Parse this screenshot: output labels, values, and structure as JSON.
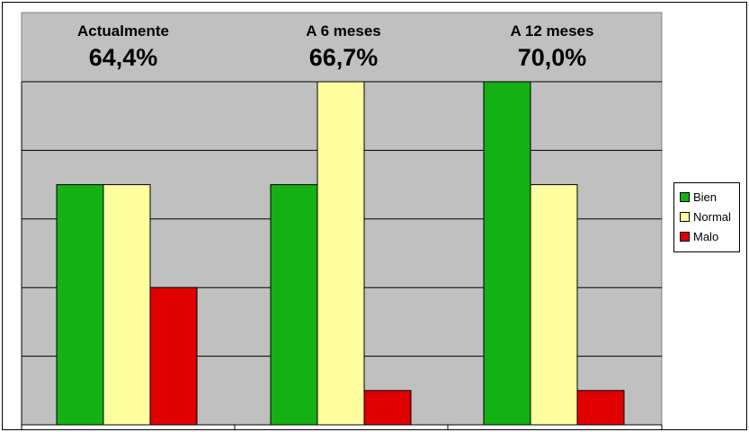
{
  "chart_data": {
    "type": "bar",
    "categories": [
      "Actualmente",
      "A 6 meses",
      "A 12 meses"
    ],
    "category_values": [
      "64,4%",
      "66,7%",
      "70,0%"
    ],
    "series": [
      {
        "name": "Bien",
        "color": "#14b014",
        "values": [
          3.5,
          3.5,
          5.0
        ]
      },
      {
        "name": "Normal",
        "color": "#ffffa0",
        "values": [
          3.5,
          5.0,
          3.5
        ]
      },
      {
        "name": "Malo",
        "color": "#e00000",
        "values": [
          2.0,
          0.5,
          0.5
        ]
      }
    ],
    "ylim": [
      0,
      5
    ],
    "grid": true,
    "legend": "right",
    "plot_background": "#c0c0c0",
    "title": "",
    "xlabel": "",
    "ylabel": ""
  }
}
